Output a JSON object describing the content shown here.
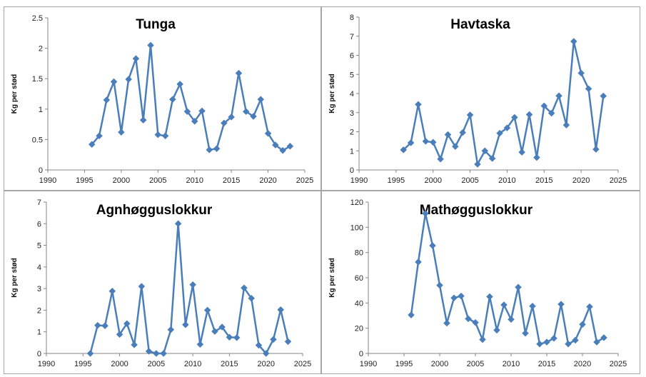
{
  "chart_data": [
    {
      "type": "line",
      "title": "Tunga",
      "ylabel": "Kg per stød",
      "xlabel": "",
      "xlim": [
        1990,
        2025
      ],
      "ylim": [
        0,
        2.5
      ],
      "xticks": [
        "1990",
        "1995",
        "2000",
        "2005",
        "2010",
        "2015",
        "2020",
        "2025"
      ],
      "yticks": [
        "0",
        "0.5",
        "1",
        "1.5",
        "2",
        "2.5"
      ],
      "grid": false,
      "color": "#4a7ebb",
      "x": [
        1996,
        1997,
        1998,
        1999,
        2000,
        2001,
        2002,
        2003,
        2004,
        2005,
        2006,
        2007,
        2008,
        2009,
        2010,
        2011,
        2012,
        2013,
        2014,
        2015,
        2016,
        2017,
        2018,
        2019,
        2020,
        2021,
        2022,
        2023
      ],
      "y": [
        0.42,
        0.56,
        1.15,
        1.45,
        0.62,
        1.49,
        1.83,
        0.82,
        2.05,
        0.58,
        0.56,
        1.16,
        1.41,
        0.96,
        0.8,
        0.97,
        0.33,
        0.35,
        0.77,
        0.87,
        1.59,
        0.96,
        0.88,
        1.16,
        0.6,
        0.41,
        0.32,
        0.39
      ]
    },
    {
      "type": "line",
      "title": "Havtaska",
      "ylabel": "Kg per stød",
      "xlabel": "",
      "xlim": [
        1990,
        2025
      ],
      "ylim": [
        0,
        8
      ],
      "xticks": [
        "1990",
        "1995",
        "2000",
        "2005",
        "2010",
        "2015",
        "2020",
        "2025"
      ],
      "yticks": [
        "0",
        "1",
        "2",
        "3",
        "4",
        "5",
        "6",
        "7",
        "8"
      ],
      "grid": false,
      "color": "#4a7ebb",
      "x": [
        1996,
        1997,
        1998,
        1999,
        2000,
        2001,
        2002,
        2003,
        2004,
        2005,
        2006,
        2007,
        2008,
        2009,
        2010,
        2011,
        2012,
        2013,
        2014,
        2015,
        2016,
        2017,
        2018,
        2019,
        2020,
        2021,
        2022,
        2023
      ],
      "y": [
        1.05,
        1.42,
        3.43,
        1.5,
        1.45,
        0.57,
        1.85,
        1.23,
        1.96,
        2.88,
        0.3,
        1.0,
        0.6,
        1.92,
        2.2,
        2.75,
        0.93,
        2.9,
        0.65,
        3.35,
        2.97,
        3.88,
        2.35,
        6.73,
        5.07,
        4.25,
        1.08,
        3.87
      ]
    },
    {
      "type": "line",
      "title": "Agnhøgguslokkur",
      "ylabel": "Kg per stød",
      "xlabel": "",
      "xlim": [
        1990,
        2025
      ],
      "ylim": [
        0,
        7
      ],
      "xticks": [
        "1990",
        "1995",
        "2000",
        "2005",
        "2010",
        "2015",
        "2020",
        "2025"
      ],
      "yticks": [
        "0",
        "1",
        "2",
        "3",
        "4",
        "5",
        "6",
        "7"
      ],
      "grid": false,
      "color": "#4a7ebb",
      "x": [
        1996,
        1997,
        1998,
        1999,
        2000,
        2001,
        2002,
        2003,
        2004,
        2005,
        2006,
        2007,
        2008,
        2009,
        2010,
        2011,
        2012,
        2013,
        2014,
        2015,
        2016,
        2017,
        2018,
        2019,
        2020,
        2021,
        2022,
        2023
      ],
      "y": [
        0.0,
        1.3,
        1.28,
        2.88,
        0.88,
        1.38,
        0.4,
        3.1,
        0.1,
        0.0,
        0.0,
        1.1,
        6.0,
        1.33,
        3.18,
        0.42,
        2.0,
        1.02,
        1.22,
        0.75,
        0.73,
        3.03,
        2.55,
        0.38,
        0.0,
        0.65,
        2.02,
        0.55
      ]
    },
    {
      "type": "line",
      "title": "Mathøgguslokkur",
      "ylabel": "Kg per stød",
      "xlabel": "",
      "xlim": [
        1990,
        2025
      ],
      "ylim": [
        0,
        120
      ],
      "xticks": [
        "1990",
        "1995",
        "2000",
        "2005",
        "2010",
        "2015",
        "2020",
        "2025"
      ],
      "yticks": [
        "0",
        "20",
        "40",
        "60",
        "80",
        "100",
        "120"
      ],
      "grid": false,
      "color": "#4a7ebb",
      "x": [
        1996,
        1997,
        1998,
        1999,
        2000,
        2001,
        2002,
        2003,
        2004,
        2005,
        2006,
        2007,
        2008,
        2009,
        2010,
        2011,
        2012,
        2013,
        2014,
        2015,
        2016,
        2017,
        2018,
        2019,
        2020,
        2021,
        2022,
        2023
      ],
      "y": [
        30.5,
        72.5,
        111.0,
        85.5,
        54.0,
        24.0,
        44.0,
        45.5,
        27.5,
        24.5,
        11.0,
        45.0,
        18.5,
        38.5,
        27.0,
        52.5,
        16.0,
        37.5,
        7.5,
        9.0,
        12.0,
        39.0,
        7.5,
        10.5,
        23.0,
        37.0,
        9.0,
        12.5
      ]
    }
  ]
}
